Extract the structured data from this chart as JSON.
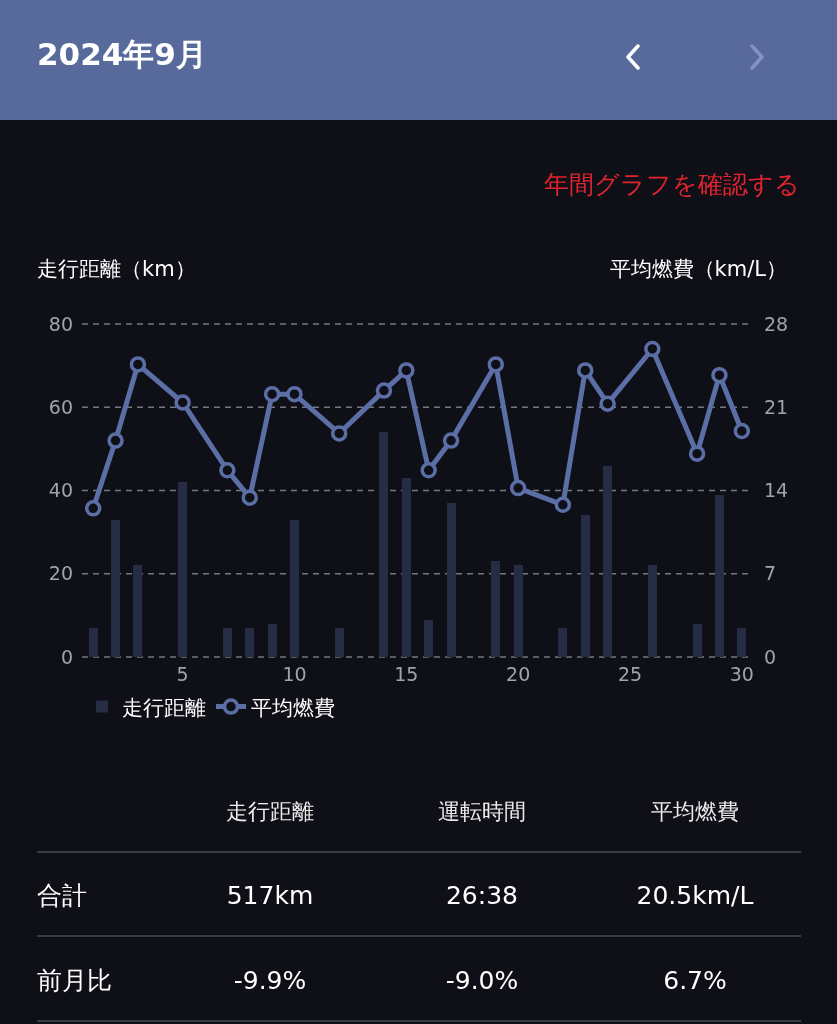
{
  "chart_data": [
    {
      "type": "bar",
      "title": "2024年9月",
      "annotations": [
        "年間グラフを確認する"
      ],
      "ylabel": "走行距離（km）",
      "y2label": "平均燃費（km/L）",
      "x": [
        1,
        2,
        3,
        5,
        7,
        8,
        9,
        10,
        12,
        14,
        15,
        16,
        17,
        19,
        20,
        22,
        23,
        24,
        26,
        28,
        29,
        30
      ],
      "series": [
        {
          "name": "走行距離",
          "type": "bar",
          "color": "#262c44",
          "values": [
            7,
            33,
            22,
            42,
            7,
            7,
            8,
            33,
            7,
            54,
            43,
            9,
            37,
            23,
            22,
            7,
            34,
            46,
            22,
            8,
            39,
            7
          ]
        },
        {
          "name": "平均燃費",
          "type": "line",
          "axis": "y2",
          "color": "#5b6fa6",
          "values": [
            12.5,
            18.2,
            24.6,
            21.4,
            15.7,
            13.4,
            22.1,
            22.1,
            18.8,
            22.4,
            24.1,
            15.7,
            18.2,
            24.6,
            14.2,
            12.8,
            24.1,
            21.3,
            25.9,
            17.1,
            23.7,
            19.0
          ]
        }
      ],
      "xlim": [
        0.5,
        30.5
      ],
      "xticks": [
        5,
        10,
        15,
        20,
        25,
        30
      ],
      "ylim": [
        0,
        80
      ],
      "yticks": [
        0,
        20,
        40,
        60,
        80
      ],
      "y2lim": [
        0,
        28
      ],
      "y2ticks": [
        0,
        7,
        14,
        21,
        28
      ],
      "grid": "y",
      "legend": "bottom left",
      "marker": "circle"
    },
    {
      "type": "other",
      "categories": [
        "走行距離",
        "運転時間",
        "平均燃費"
      ],
      "y_categories": [
        "合計",
        "前月比"
      ],
      "cell_labels": [
        [
          "517km",
          "26:38",
          "20.5km/L"
        ],
        [
          "-9.9%",
          "-9.0%",
          "6.7%"
        ]
      ]
    }
  ]
}
